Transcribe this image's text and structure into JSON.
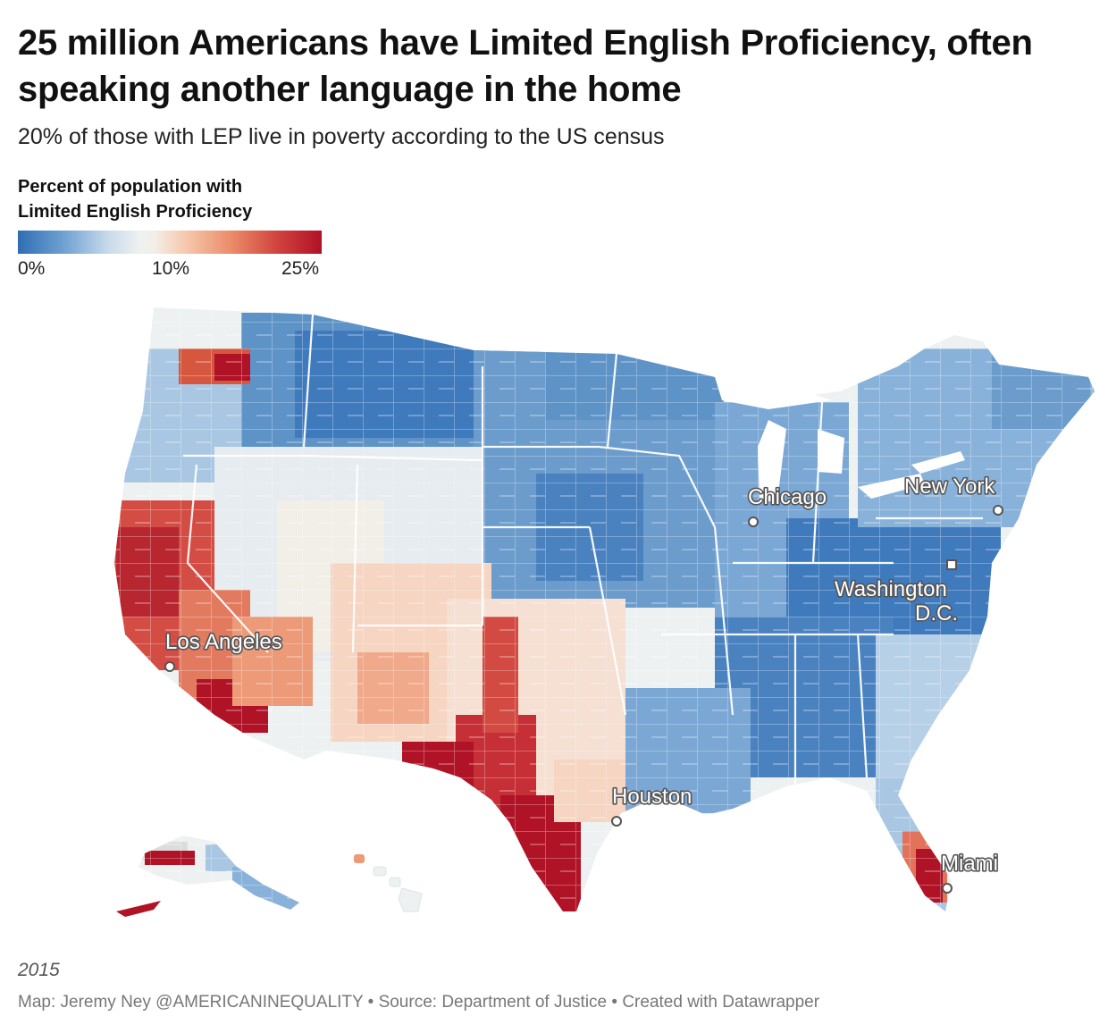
{
  "header": {
    "title": "25 million Americans have Limited English Proficiency, often speaking another language in the home",
    "subtitle": "20% of those with LEP live in poverty according to the US census"
  },
  "legend": {
    "title_line1": "Percent of population with",
    "title_line2": "Limited English Proficiency",
    "min_label": "0%",
    "mid_label": "10%",
    "max_label": "25%",
    "min_value": 0,
    "mid_value": 10,
    "max_value": 25,
    "colors": {
      "low": "#2f6eb4",
      "mid": "#f1f0ec",
      "high": "#b01226"
    }
  },
  "map": {
    "region": "United States counties",
    "cities": [
      {
        "name": "Chicago"
      },
      {
        "name": "New York"
      },
      {
        "name": "Washington D.C.",
        "line1": "Washington",
        "line2": "D.C."
      },
      {
        "name": "Los Angeles"
      },
      {
        "name": "Houston"
      },
      {
        "name": "Miami"
      }
    ]
  },
  "footer": {
    "year": "2015",
    "credits": "Map: Jeremy Ney @AMERICANINEQUALITY • Source: Department of Justice • Created with Datawrapper"
  }
}
